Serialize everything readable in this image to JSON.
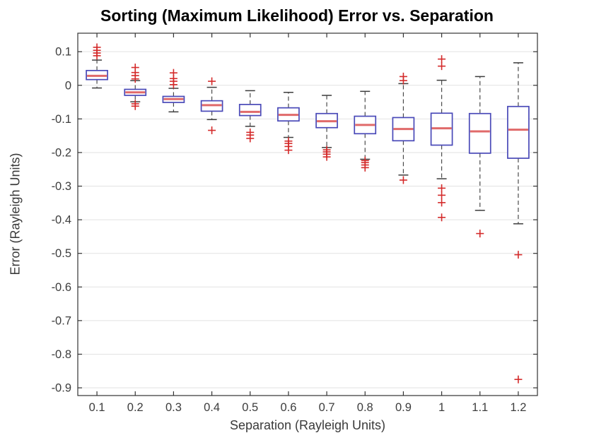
{
  "chart_data": {
    "type": "boxplot",
    "title": "Sorting (Maximum Likelihood) Error vs. Separation",
    "xlabel": "Separation (Rayleigh Units)",
    "ylabel": "Error (Rayleigh Units)",
    "legend": "none",
    "grid": "horizontal-only",
    "categories": [
      "0.1",
      "0.2",
      "0.3",
      "0.4",
      "0.5",
      "0.6",
      "0.7",
      "0.8",
      "0.9",
      "1",
      "1.1",
      "1.2"
    ],
    "ylim": [
      -0.923,
      0.155
    ],
    "yticks": [
      {
        "value": 0.1,
        "label": "0.1"
      },
      {
        "value": 0.0,
        "label": "0"
      },
      {
        "value": -0.1,
        "label": "-0.1"
      },
      {
        "value": -0.2,
        "label": "-0.2"
      },
      {
        "value": -0.3,
        "label": "-0.3"
      },
      {
        "value": -0.4,
        "label": "-0.4"
      },
      {
        "value": -0.5,
        "label": "-0.5"
      },
      {
        "value": -0.6,
        "label": "-0.6"
      },
      {
        "value": -0.7,
        "label": "-0.7"
      },
      {
        "value": -0.8,
        "label": "-0.8"
      },
      {
        "value": -0.9,
        "label": "-0.9"
      }
    ],
    "boxes": [
      {
        "category": "0.1",
        "whisker_low": -0.008,
        "q1": 0.017,
        "median": 0.028,
        "q3": 0.044,
        "whisker_high": 0.075,
        "outliers_above": [
          0.113,
          0.104,
          0.096,
          0.088
        ],
        "outliers_below": []
      },
      {
        "category": "0.2",
        "whisker_low": -0.049,
        "q1": -0.03,
        "median": -0.021,
        "q3": -0.012,
        "whisker_high": 0.014,
        "outliers_above": [
          0.053,
          0.038,
          0.029,
          0.019
        ],
        "outliers_below": [
          -0.055,
          -0.062
        ]
      },
      {
        "category": "0.3",
        "whisker_low": -0.079,
        "q1": -0.051,
        "median": -0.041,
        "q3": -0.033,
        "whisker_high": -0.009,
        "outliers_above": [
          0.037,
          0.02,
          0.012,
          0.002
        ],
        "outliers_below": []
      },
      {
        "category": "0.4",
        "whisker_low": -0.102,
        "q1": -0.077,
        "median": -0.059,
        "q3": -0.046,
        "whisker_high": -0.006,
        "outliers_above": [
          0.012
        ],
        "outliers_below": [
          -0.134
        ]
      },
      {
        "category": "0.5",
        "whisker_low": -0.122,
        "q1": -0.09,
        "median": -0.079,
        "q3": -0.057,
        "whisker_high": -0.016,
        "outliers_above": [],
        "outliers_below": [
          -0.14,
          -0.148,
          -0.158
        ]
      },
      {
        "category": "0.6",
        "whisker_low": -0.155,
        "q1": -0.106,
        "median": -0.088,
        "q3": -0.067,
        "whisker_high": -0.021,
        "outliers_above": [],
        "outliers_below": [
          -0.166,
          -0.173,
          -0.182,
          -0.193
        ]
      },
      {
        "category": "0.7",
        "whisker_low": -0.185,
        "q1": -0.126,
        "median": -0.107,
        "q3": -0.084,
        "whisker_high": -0.03,
        "outliers_above": [],
        "outliers_below": [
          -0.192,
          -0.198,
          -0.205,
          -0.213
        ]
      },
      {
        "category": "0.8",
        "whisker_low": -0.22,
        "q1": -0.144,
        "median": -0.118,
        "q3": -0.092,
        "whisker_high": -0.018,
        "outliers_above": [],
        "outliers_below": [
          -0.224,
          -0.23,
          -0.237,
          -0.245
        ]
      },
      {
        "category": "0.9",
        "whisker_low": -0.267,
        "q1": -0.165,
        "median": -0.13,
        "q3": -0.096,
        "whisker_high": 0.005,
        "outliers_above": [
          0.026,
          0.014
        ],
        "outliers_below": [
          -0.282
        ]
      },
      {
        "category": "1",
        "whisker_low": -0.278,
        "q1": -0.178,
        "median": -0.128,
        "q3": -0.083,
        "whisker_high": 0.015,
        "outliers_above": [
          0.078,
          0.057
        ],
        "outliers_below": [
          -0.306,
          -0.327,
          -0.349,
          -0.393
        ]
      },
      {
        "category": "1.1",
        "whisker_low": -0.372,
        "q1": -0.202,
        "median": -0.137,
        "q3": -0.084,
        "whisker_high": 0.026,
        "outliers_above": [],
        "outliers_below": [
          -0.441
        ]
      },
      {
        "category": "1.2",
        "whisker_low": -0.412,
        "q1": -0.217,
        "median": -0.132,
        "q3": -0.063,
        "whisker_high": 0.067,
        "outliers_above": [],
        "outliers_below": [
          -0.504,
          -0.875
        ]
      }
    ],
    "colors": {
      "box": "#4949b8",
      "median": "#e06a6a",
      "whisker": "#4a4a4a",
      "cap": "#3d3d3d",
      "outlier": "#d42a2a",
      "grid": "#e2e2e2",
      "axis": "#333333",
      "tick_label": "#3d3d3d",
      "background": "#ffffff"
    }
  }
}
